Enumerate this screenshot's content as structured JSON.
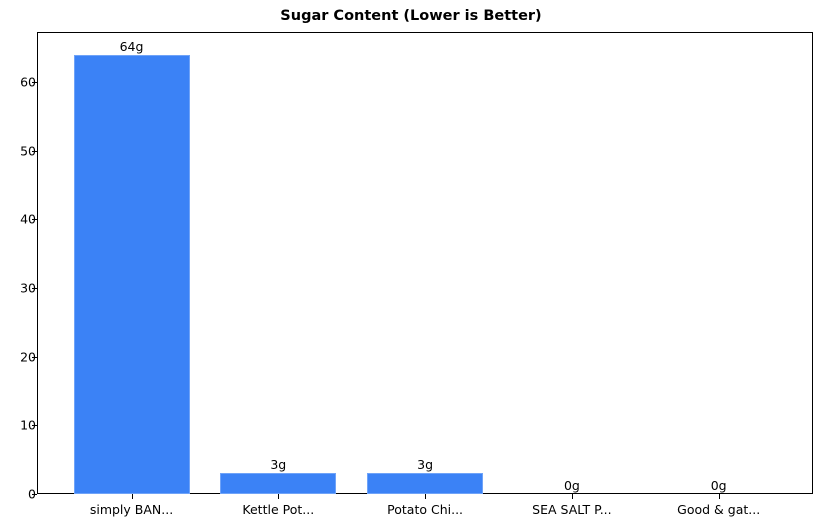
{
  "chart_data": {
    "type": "bar",
    "title": "Sugar Content (Lower is Better)",
    "xlabel": "",
    "ylabel": "",
    "categories": [
      "simply BAN...",
      "Kettle Pot...",
      "Potato Chi...",
      "SEA SALT P...",
      "Good & gat..."
    ],
    "values": [
      64,
      3,
      3,
      0,
      0
    ],
    "data_labels": [
      "64g",
      "3g",
      "3g",
      "0g",
      "0g"
    ],
    "ylim": [
      0,
      67.2
    ],
    "yticks": [
      0,
      10,
      20,
      30,
      40,
      50,
      60
    ],
    "ytick_labels": [
      "0",
      "10",
      "20",
      "30",
      "40",
      "50",
      "60"
    ],
    "grid": false,
    "legend": null,
    "bar_color": "#3b82f6"
  }
}
